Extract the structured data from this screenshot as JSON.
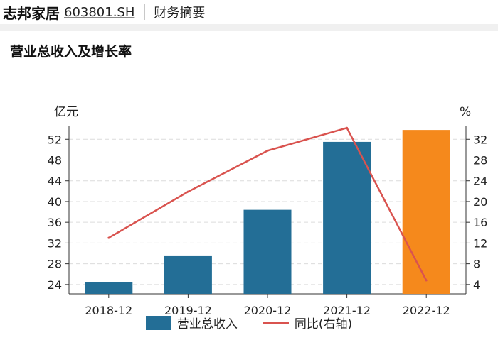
{
  "header": {
    "company": "志邦家居",
    "code": "603801.SH",
    "tab": "财务摘要"
  },
  "section": {
    "title": "营业总收入及增长率"
  },
  "chart_data": {
    "type": "bar",
    "categories": [
      "2018-12",
      "2019-12",
      "2020-12",
      "2021-12",
      "2022-12"
    ],
    "series": [
      {
        "name": "营业总收入",
        "type": "bar",
        "axis": "left",
        "values": [
          24.5,
          29.6,
          38.4,
          51.5,
          53.8
        ],
        "colors": [
          "#236e96",
          "#236e96",
          "#236e96",
          "#236e96",
          "#f5891c"
        ]
      },
      {
        "name": "同比(右轴)",
        "type": "line",
        "axis": "right",
        "values": [
          13.0,
          21.9,
          29.8,
          34.2,
          4.8
        ],
        "color": "#d9534f"
      }
    ],
    "ylabel_left": "亿元",
    "ylabel_right": "%",
    "ylim_left": [
      22.2,
      54.5
    ],
    "ylim_right": [
      2.2,
      34.5
    ],
    "yticks_left": [
      24,
      28,
      32,
      36,
      40,
      44,
      48,
      52
    ],
    "yticks_right": [
      4,
      8,
      12,
      16,
      20,
      24,
      28,
      32
    ],
    "grid": true,
    "legend_position": "bottom"
  }
}
